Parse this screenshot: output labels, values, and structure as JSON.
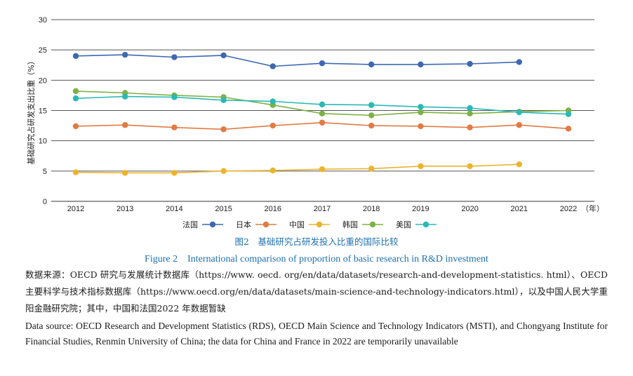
{
  "chart_data": {
    "type": "line",
    "ylabel": "基础研究占研发支出比重（%）",
    "year_unit": "（年）",
    "ylim": [
      0,
      30
    ],
    "yticks": [
      0,
      5,
      10,
      15,
      20,
      25,
      30
    ],
    "x": [
      "2012",
      "2013",
      "2014",
      "2015",
      "2016",
      "2017",
      "2018",
      "2019",
      "2020",
      "2021",
      "2022"
    ],
    "grid": true,
    "series": [
      {
        "name": "法国",
        "color": "#3e67b1",
        "values": [
          24.0,
          24.2,
          23.8,
          24.1,
          22.3,
          22.8,
          22.6,
          22.6,
          22.7,
          23.0,
          null
        ]
      },
      {
        "name": "日本",
        "color": "#e27a43",
        "values": [
          12.4,
          12.6,
          12.2,
          11.9,
          12.5,
          13.0,
          12.5,
          12.4,
          12.2,
          12.6,
          12.0
        ]
      },
      {
        "name": "中国",
        "color": "#ecb42c",
        "values": [
          4.8,
          4.7,
          4.7,
          5.0,
          5.1,
          5.3,
          5.4,
          5.8,
          5.8,
          6.1,
          null
        ]
      },
      {
        "name": "韩国",
        "color": "#7db146",
        "values": [
          18.2,
          17.9,
          17.5,
          17.2,
          15.9,
          14.5,
          14.2,
          14.7,
          14.5,
          14.8,
          15.0
        ]
      },
      {
        "name": "美国",
        "color": "#2ab9b5",
        "values": [
          17.0,
          17.3,
          17.2,
          16.7,
          16.5,
          16.0,
          15.9,
          15.6,
          15.4,
          14.7,
          14.4
        ]
      }
    ]
  },
  "caption": {
    "cn": "图2　基础研究占研发投入比重的国际比较",
    "en": "Figure 2　International comparison of proportion of basic research in R&D investment"
  },
  "source": {
    "cn": "数据来源：OECD 研究与发展统计数据库（https://www. oecd. org/en/data/datasets/research-and-development-statistics. html）、OECD 主要科学与技术指标数据库（https://www.oecd.org/en/data/datasets/main-science-and-technology-indicators.html），以及中国人民大学重阳金融研究院；其中，中国和法国2022 年数据暂缺",
    "en": "Data source: OECD Research and Development Statistics (RDS), OECD Main Science and Technology Indicators (MSTI), and Chongyang Institute for Financial Studies, Renmin University of China; the data for China and France in 2022 are temporarily unavailable"
  }
}
